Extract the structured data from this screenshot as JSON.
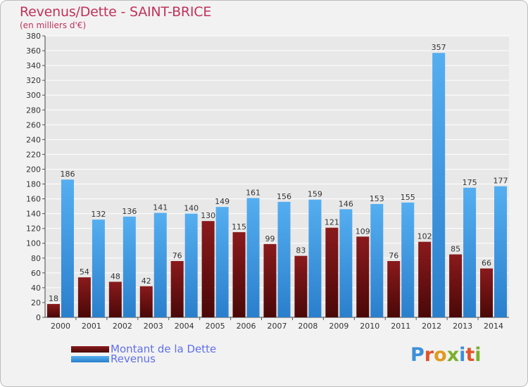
{
  "title": "Revenus/Dette - SAINT-BRICE",
  "subtitle": "(en milliers d'€)",
  "colors": {
    "title": "#c0325a",
    "grid": "#ffffff",
    "background": "#f2f2f2",
    "legend_text": "#6070e8",
    "dette": "#7a1416",
    "revenus": "#3d9be6"
  },
  "legend": [
    {
      "label": "Montant de la Dette",
      "color": "#7a1416"
    },
    {
      "label": "Revenus",
      "color": "#3d9be6"
    }
  ],
  "logo": {
    "text": "Proxiti",
    "letter_colors": [
      "#3d8fd8",
      "#e0542a",
      "#e09a20",
      "#7ab02c",
      "#3d8fd8",
      "#e0542a",
      "#7ab02c"
    ]
  },
  "chart_data": {
    "type": "bar",
    "categories": [
      "2000",
      "2001",
      "2002",
      "2003",
      "2004",
      "2005",
      "2006",
      "2007",
      "2008",
      "2009",
      "2010",
      "2011",
      "2012",
      "2013",
      "2014"
    ],
    "series": [
      {
        "name": "Montant de la Dette",
        "values": [
          18,
          54,
          48,
          42,
          76,
          130,
          115,
          99,
          83,
          121,
          109,
          76,
          102,
          85,
          66
        ]
      },
      {
        "name": "Revenus",
        "values": [
          186,
          132,
          136,
          141,
          140,
          149,
          161,
          156,
          159,
          146,
          153,
          155,
          357,
          175,
          177
        ]
      }
    ],
    "yticks": [
      0,
      20,
      40,
      60,
      80,
      100,
      120,
      140,
      160,
      180,
      200,
      220,
      240,
      260,
      280,
      300,
      320,
      340,
      360,
      380
    ],
    "ylim": [
      0,
      380
    ],
    "grid": true,
    "legend_position": "bottom-left",
    "data_labels": true
  }
}
